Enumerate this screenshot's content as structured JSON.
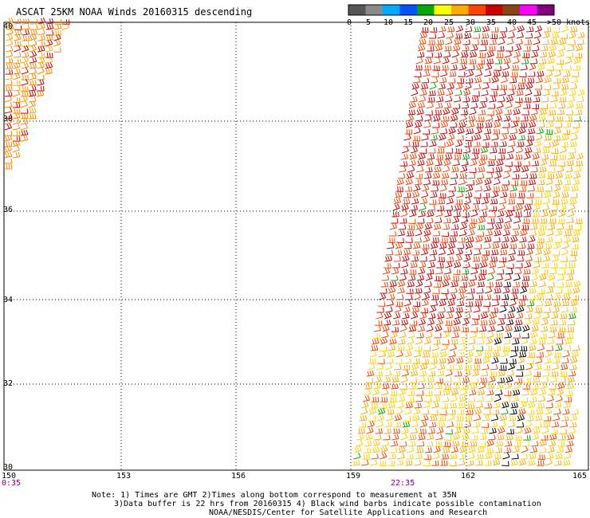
{
  "title": "ASCAT 25KM NOAA Winds 20160315 descending",
  "color_scale": {
    "unit_label": ">50 knots",
    "ticks": [
      "0",
      "5",
      "10",
      "15",
      "20",
      "25",
      "30",
      "35",
      "40",
      "45"
    ],
    "colors": [
      "#555555",
      "#8a8a8a",
      "#00aaff",
      "#0055ff",
      "#00aa00",
      "#ffff00",
      "#ffaa00",
      "#ff4400",
      "#cc0000",
      "#8b4513",
      "#ff00ff",
      "#800080"
    ]
  },
  "map": {
    "lon_labels": [
      "150",
      "153",
      "156",
      "159",
      "162",
      "165"
    ],
    "lat_labels": [
      "40",
      "38",
      "36",
      "34",
      "32",
      "30"
    ],
    "time_labels": [
      "0:35",
      "22:35"
    ],
    "time_color": "#800080"
  },
  "notes": [
    "Note: 1) Times are GMT 2)Times along bottom correspond to measurement at 35N",
    "3)Data buffer is 22 hrs from 20160315 4) Black wind barbs indicate possible contamination",
    "NOAA/NESDIS/Center for Satellite Applications and Research"
  ]
}
